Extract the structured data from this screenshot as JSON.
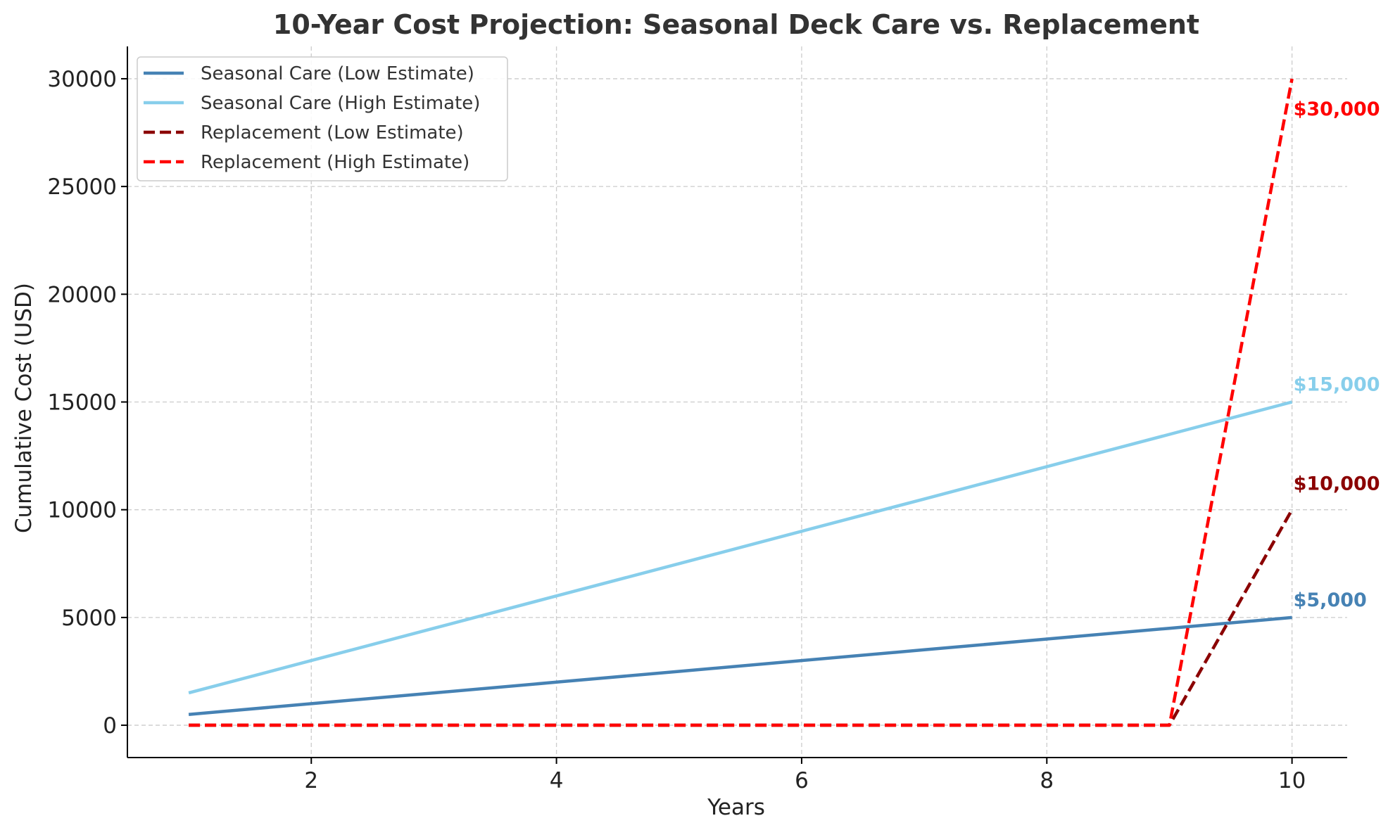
{
  "chart_data": {
    "type": "line",
    "title": "10-Year Cost Projection: Seasonal Deck Care vs. Replacement",
    "xlabel": "Years",
    "ylabel": "Cumulative Cost (USD)",
    "x": [
      1,
      2,
      3,
      4,
      5,
      6,
      7,
      8,
      9,
      10
    ],
    "xlim": [
      0.5,
      10.45
    ],
    "ylim": [
      -1500,
      31500
    ],
    "xticks": [
      2,
      4,
      6,
      8,
      10
    ],
    "yticks": [
      0,
      5000,
      10000,
      15000,
      20000,
      25000,
      30000
    ],
    "grid": true,
    "legend_position": "top-left",
    "series": [
      {
        "name": "Seasonal Care (Low Estimate)",
        "values": [
          500,
          1000,
          1500,
          2000,
          2500,
          3000,
          3500,
          4000,
          4500,
          5000
        ],
        "color": "#4682b4",
        "dashed": false,
        "end_label": "$5,000"
      },
      {
        "name": "Seasonal Care (High Estimate)",
        "values": [
          1500,
          3000,
          4500,
          6000,
          7500,
          9000,
          10500,
          12000,
          13500,
          15000
        ],
        "color": "#87ceeb",
        "dashed": false,
        "end_label": "$15,000"
      },
      {
        "name": "Replacement (Low Estimate)",
        "values": [
          0,
          0,
          0,
          0,
          0,
          0,
          0,
          0,
          0,
          10000
        ],
        "color": "#8b0000",
        "dashed": true,
        "end_label": "$10,000"
      },
      {
        "name": "Replacement (High Estimate)",
        "values": [
          0,
          0,
          0,
          0,
          0,
          0,
          0,
          0,
          0,
          30000
        ],
        "color": "#ff0000",
        "dashed": true,
        "end_label": "$30,000"
      }
    ]
  }
}
